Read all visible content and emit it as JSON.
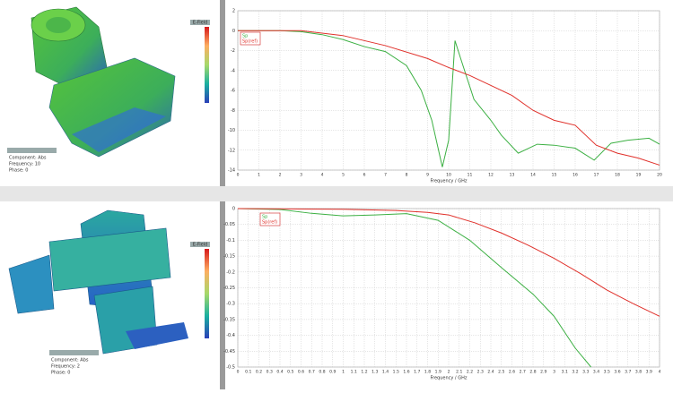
{
  "chart_data": [
    {
      "type": "line",
      "xlabel": "Frequency / GHz",
      "xlim": [
        0,
        20
      ],
      "xticks": [
        0,
        1,
        2,
        3,
        4,
        5,
        6,
        7,
        8,
        9,
        10,
        11,
        12,
        13,
        14,
        15,
        16,
        17,
        18,
        19,
        20
      ],
      "ylim": [
        -14,
        2
      ],
      "yticks": [
        2,
        0,
        -2,
        -4,
        -6,
        -8,
        -10,
        -12,
        -14
      ],
      "grid": true,
      "series": [
        {
          "name": "Sp",
          "color": "#3cb043",
          "x": [
            0,
            2,
            3,
            4,
            5,
            6,
            7,
            8,
            8.7,
            9.2,
            9.7,
            10,
            10.3,
            10.6,
            11.2,
            12,
            12.5,
            13.3,
            14.2,
            15,
            16,
            16.9,
            17.7,
            18.5,
            19.5,
            20
          ],
          "values": [
            0,
            0,
            -0.1,
            -0.4,
            -0.9,
            -1.6,
            -2.1,
            -3.5,
            -6,
            -9,
            -13.7,
            -11,
            -1,
            -3,
            -6.9,
            -9,
            -10.5,
            -12.3,
            -11.4,
            -11.5,
            -11.8,
            -13,
            -11.3,
            -11,
            -10.8,
            -11.4
          ]
        },
        {
          "name": "Sp(ref)",
          "color": "#e0302a",
          "x": [
            0,
            3,
            5,
            7,
            9,
            10,
            11,
            12,
            13,
            14,
            15,
            16,
            17,
            18,
            19,
            20
          ],
          "values": [
            0,
            0,
            -0.5,
            -1.5,
            -2.8,
            -3.7,
            -4.5,
            -5.5,
            -6.5,
            -8,
            -9,
            -9.5,
            -11.5,
            -12.3,
            -12.8,
            -13.5
          ]
        }
      ]
    },
    {
      "type": "line",
      "xlabel": "Frequency / GHz",
      "xlim": [
        0,
        4
      ],
      "xticks": [
        0,
        0.1,
        0.2,
        0.3,
        0.4,
        0.5,
        0.6,
        0.7,
        0.8,
        0.9,
        1,
        1.1,
        1.2,
        1.3,
        1.4,
        1.5,
        1.6,
        1.7,
        1.8,
        1.9,
        2,
        2.1,
        2.2,
        2.3,
        2.4,
        2.5,
        2.6,
        2.7,
        2.8,
        2.9,
        3,
        3.1,
        3.2,
        3.3,
        3.4,
        3.5,
        3.6,
        3.7,
        3.8,
        3.9,
        4
      ],
      "ylim": [
        -0.5,
        0
      ],
      "yticks": [
        0,
        -0.05,
        -0.1,
        -0.15,
        -0.2,
        -0.25,
        -0.3,
        -0.35,
        -0.4,
        -0.45,
        -0.5
      ],
      "grid": true,
      "series": [
        {
          "name": "Sp",
          "color": "#3cb043",
          "x": [
            0,
            0.4,
            0.7,
            1,
            1.3,
            1.6,
            1.9,
            2.2,
            2.5,
            2.8,
            3,
            3.2,
            3.35
          ],
          "values": [
            0,
            -0.003,
            -0.015,
            -0.023,
            -0.02,
            -0.016,
            -0.037,
            -0.1,
            -0.186,
            -0.27,
            -0.34,
            -0.44,
            -0.5
          ]
        },
        {
          "name": "Sp(ref)",
          "color": "#e0302a",
          "x": [
            0,
            1,
            1.5,
            1.8,
            2,
            2.25,
            2.5,
            2.75,
            3,
            3.25,
            3.5,
            3.75,
            4
          ],
          "values": [
            0,
            -0.002,
            -0.006,
            -0.012,
            -0.02,
            -0.045,
            -0.077,
            -0.115,
            -0.157,
            -0.205,
            -0.257,
            -0.3,
            -0.34
          ]
        }
      ]
    }
  ],
  "panels": [
    {
      "legend_title": "E-Field",
      "info": [
        "Component: Abs",
        "Frequency: 10",
        "Phase: 0"
      ]
    },
    {
      "legend_title": "E-Field",
      "info": [
        "Component: Abs",
        "Frequency: 2",
        "Phase: 0"
      ]
    }
  ]
}
